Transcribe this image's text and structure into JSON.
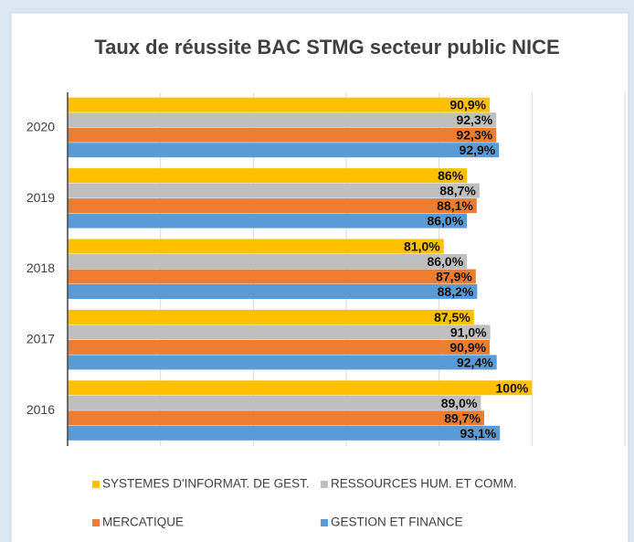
{
  "chart_data": {
    "type": "hbar",
    "title": "Taux de réussite BAC STMG secteur public NICE",
    "categories": [
      "2020",
      "2019",
      "2018",
      "2017",
      "2016"
    ],
    "series": [
      {
        "name": "SYSTEMES D'INFORMAT. DE GEST.",
        "color": "#ffc000",
        "values": [
          90.9,
          86,
          81.0,
          87.5,
          100
        ],
        "value_labels": [
          "90,9%",
          "86%",
          "81,0%",
          "87,5%",
          "100%"
        ]
      },
      {
        "name": "RESSOURCES HUM. ET COMM.",
        "color": "#bfbfbf",
        "values": [
          92.3,
          88.7,
          86.0,
          91.0,
          89.0
        ],
        "value_labels": [
          "92,3%",
          "88,7%",
          "86,0%",
          "91,0%",
          "89,0%"
        ]
      },
      {
        "name": "MERCATIQUE",
        "color": "#ed7d31",
        "values": [
          92.3,
          88.1,
          87.9,
          90.9,
          89.7
        ],
        "value_labels": [
          "92,3%",
          "88,1%",
          "87,9%",
          "90,9%",
          "89,7%"
        ]
      },
      {
        "name": "GESTION ET FINANCE",
        "color": "#5b9bd5",
        "values": [
          92.9,
          86.0,
          88.2,
          92.4,
          93.1
        ],
        "value_labels": [
          "92,9%",
          "86,0%",
          "88,2%",
          "92,4%",
          "93,1%"
        ]
      }
    ],
    "xlim": [
      0,
      120
    ],
    "xticks": [
      0,
      20,
      40,
      60,
      80,
      100,
      120
    ],
    "grid": true
  }
}
